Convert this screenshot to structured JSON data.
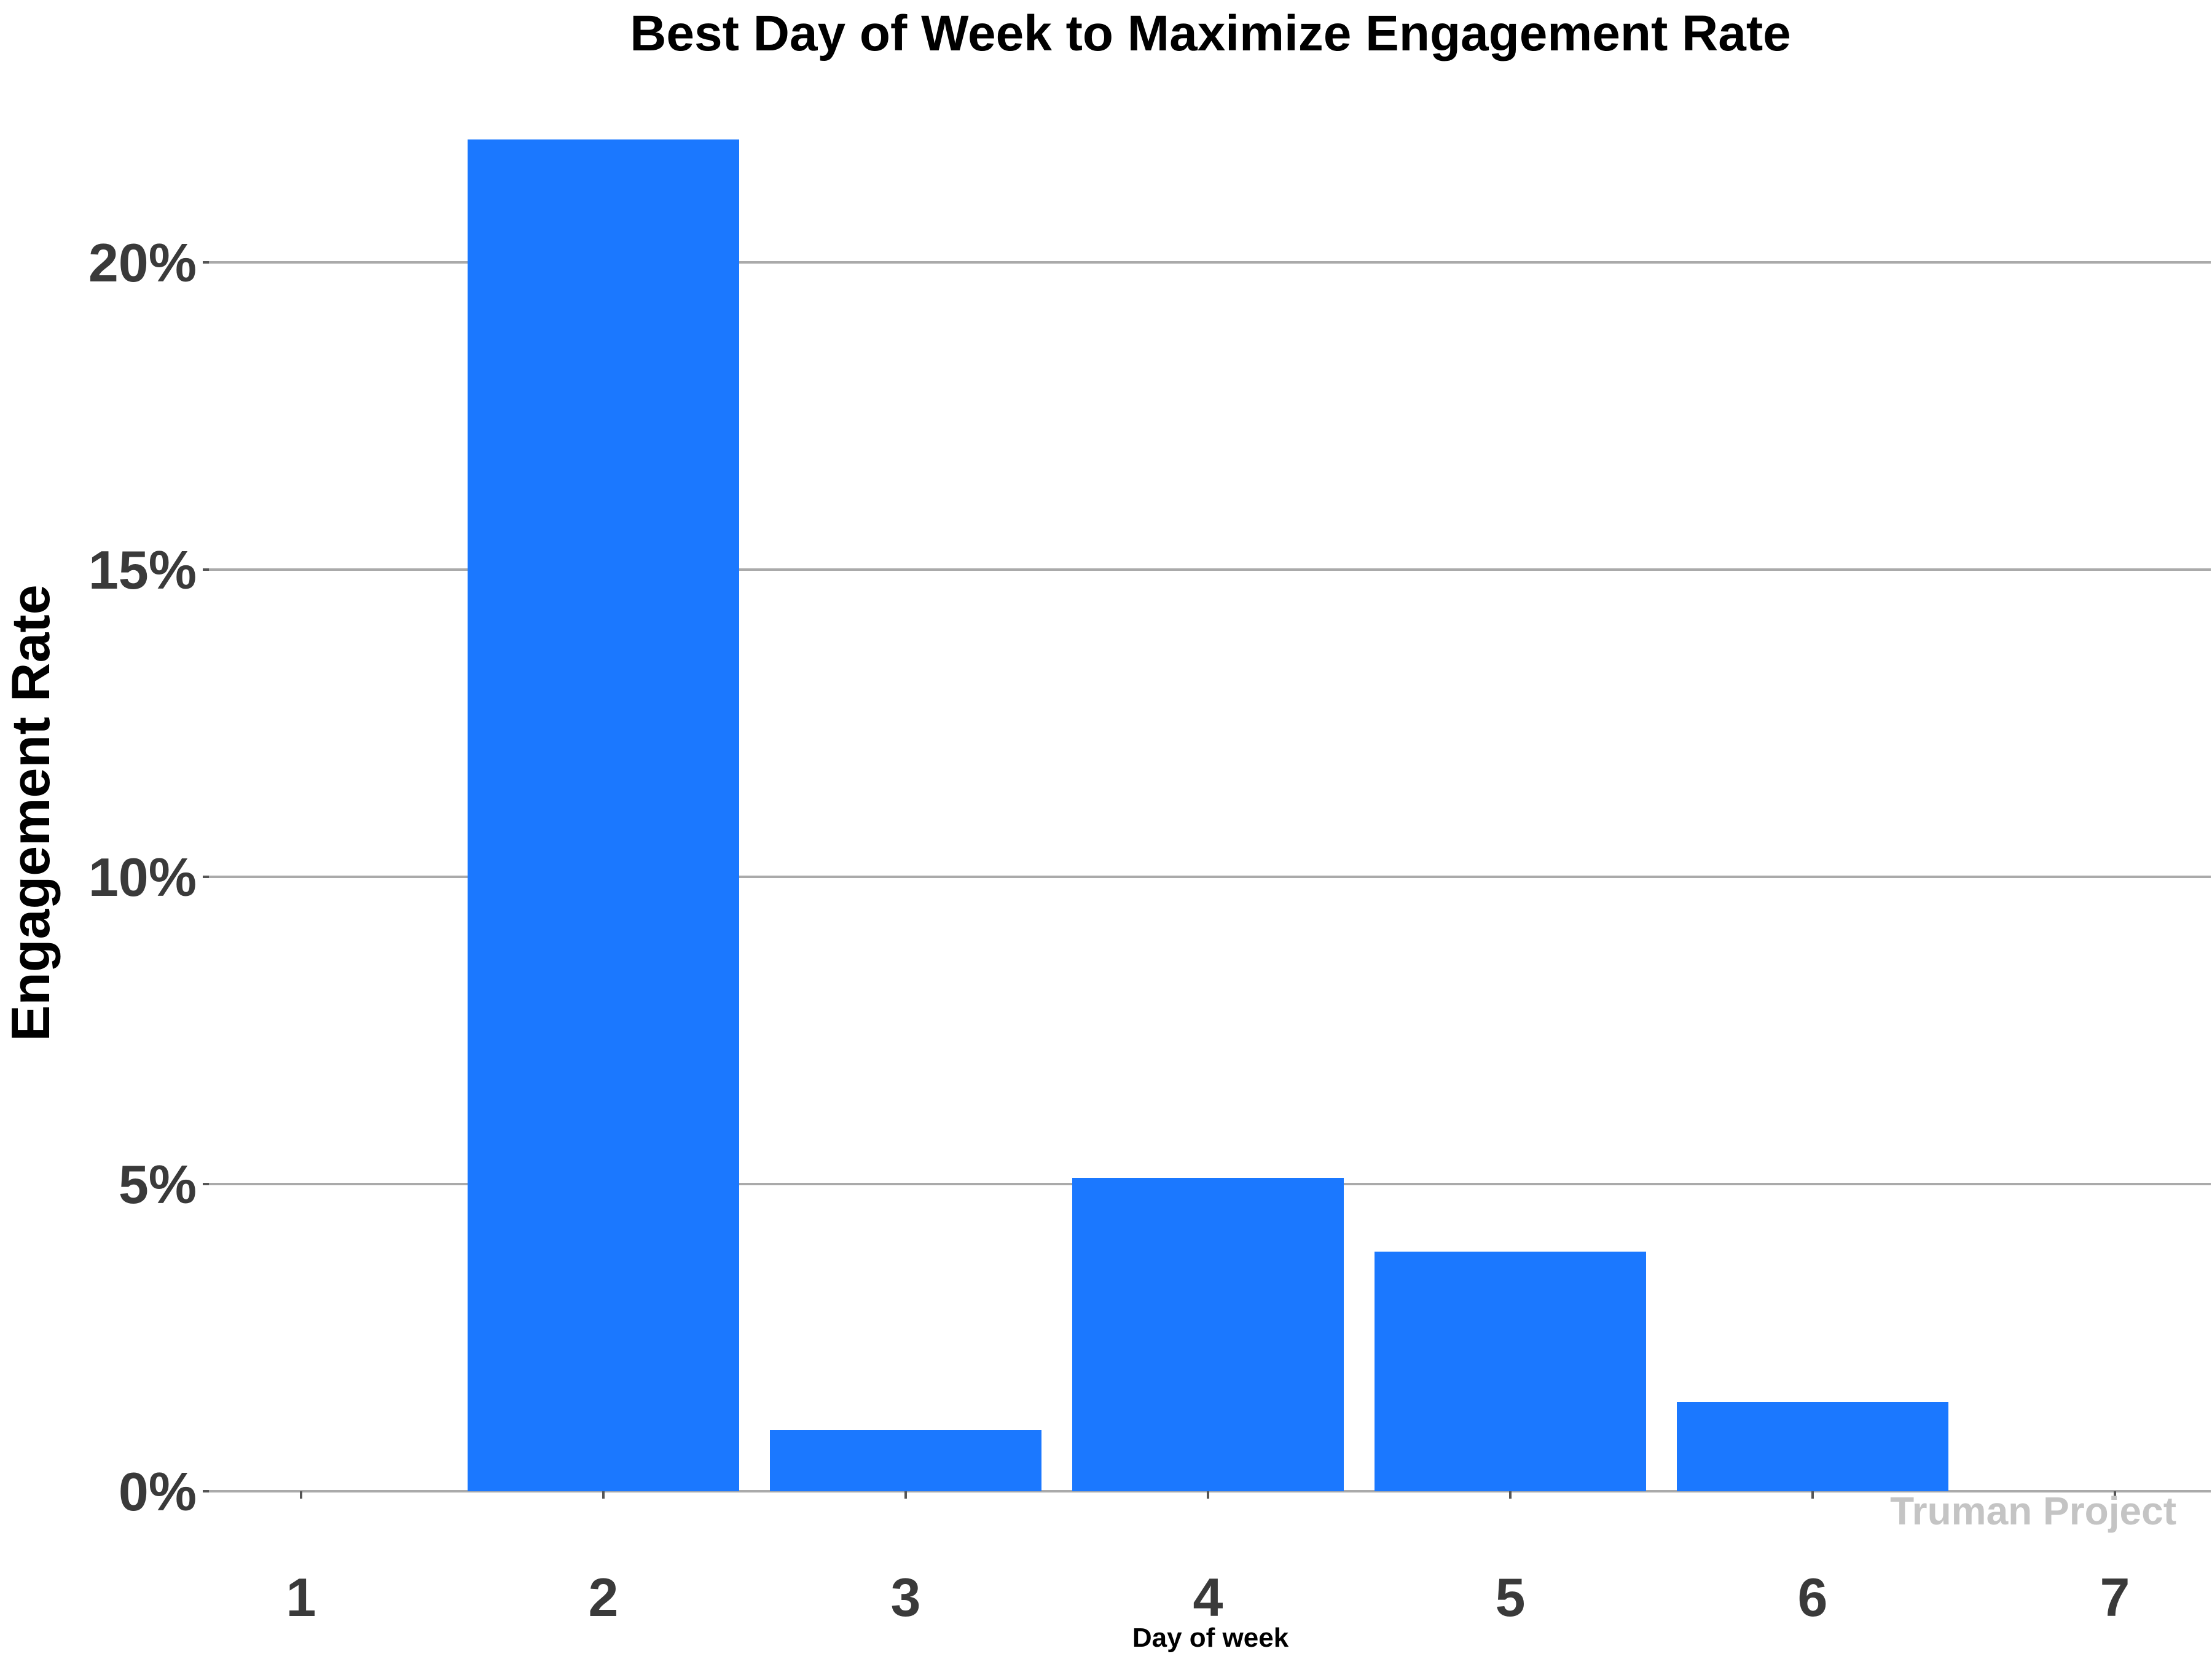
{
  "chart_data": {
    "type": "bar",
    "title": "Best Day of Week to Maximize Engagement Rate",
    "xlabel": "Day of week",
    "ylabel": "Engagement Rate",
    "categories": [
      "1",
      "2",
      "3",
      "4",
      "5",
      "6",
      "7"
    ],
    "values": [
      0,
      22.0,
      1.0,
      5.1,
      3.9,
      1.45,
      0
    ],
    "y_ticks": [
      "0%",
      "5%",
      "10%",
      "15%",
      "20%"
    ],
    "y_tick_values": [
      0,
      5,
      10,
      15,
      20
    ],
    "ylim": [
      0,
      22.0
    ],
    "grid": "horizontal",
    "bar_color": "#1b78ff",
    "watermark": "Truman Project"
  }
}
